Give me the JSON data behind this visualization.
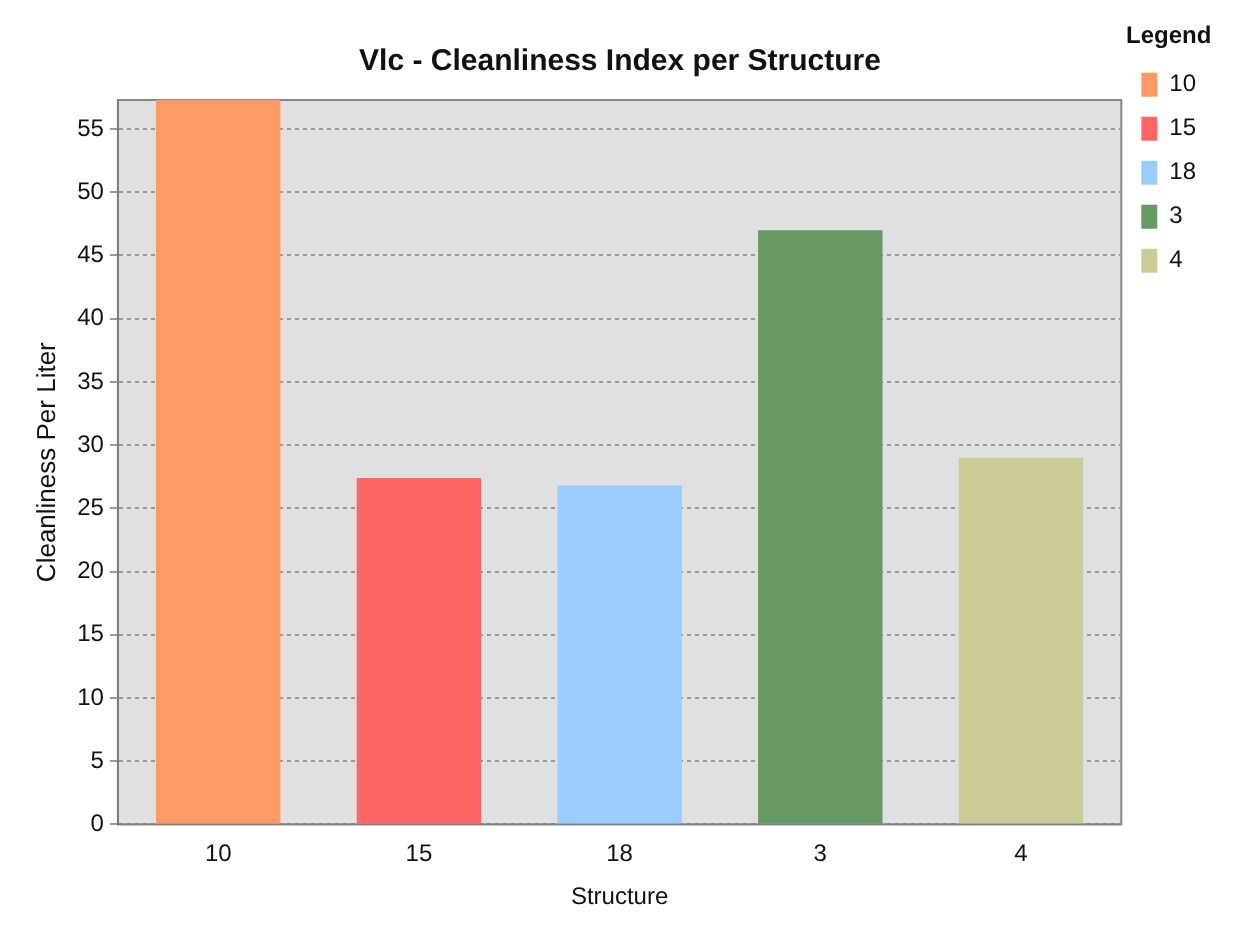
{
  "chart_data": {
    "type": "bar",
    "title": "Vlc - Cleanliness Index per Structure",
    "xlabel": "Structure",
    "ylabel": "Cleanliness Per Liter",
    "legend_title": "Legend",
    "categories": [
      "10",
      "15",
      "18",
      "3",
      "4"
    ],
    "series": [
      {
        "name": "10",
        "color": "#ff9966",
        "values": [
          57.3,
          null,
          null,
          null,
          null
        ]
      },
      {
        "name": "15",
        "color": "#ff6666",
        "values": [
          null,
          27.4,
          null,
          null,
          null
        ]
      },
      {
        "name": "18",
        "color": "#99ccff",
        "values": [
          null,
          null,
          26.8,
          null,
          null
        ]
      },
      {
        "name": "3",
        "color": "#669966",
        "values": [
          null,
          null,
          null,
          47.0,
          null
        ]
      },
      {
        "name": "4",
        "color": "#cccc99",
        "values": [
          null,
          null,
          null,
          null,
          29.0
        ]
      }
    ],
    "ylim": [
      0,
      57.3
    ],
    "yticks": [
      0,
      5,
      10,
      15,
      20,
      25,
      30,
      35,
      40,
      45,
      50,
      55
    ],
    "grid": "y",
    "legend": "top right"
  }
}
